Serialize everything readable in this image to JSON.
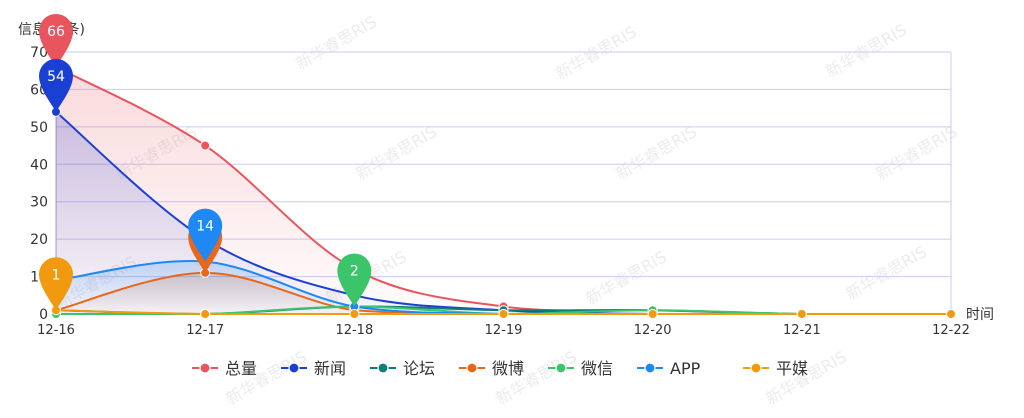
{
  "chart_data": {
    "type": "line",
    "ylabel": "信息量(条)",
    "xlabel": "时间",
    "categories": [
      "12-16",
      "12-17",
      "12-18",
      "12-19",
      "12-20",
      "12-21",
      "12-22"
    ],
    "ylim": [
      0,
      70
    ],
    "yticks": [
      0,
      10,
      20,
      30,
      40,
      50,
      60,
      70
    ],
    "grid": true,
    "legend_position": "bottom-center",
    "series": [
      {
        "name": "总量",
        "color": "#e8555e",
        "values": [
          66,
          45,
          12,
          2,
          1,
          0,
          0
        ],
        "area": true
      },
      {
        "name": "新闻",
        "color": "#1a3fd3",
        "values": [
          54,
          20,
          5,
          1,
          0,
          0,
          0
        ],
        "area": true
      },
      {
        "name": "论坛",
        "color": "#0e7c7b",
        "values": [
          1,
          0,
          2,
          1,
          1,
          0,
          0
        ],
        "area": false
      },
      {
        "name": "微博",
        "color": "#e8671b",
        "values": [
          1,
          11,
          1,
          0,
          0,
          0,
          0
        ],
        "area": true
      },
      {
        "name": "微信",
        "color": "#3cc46a",
        "values": [
          0,
          0,
          2,
          0,
          1,
          0,
          0
        ],
        "area": false
      },
      {
        "name": "APP",
        "color": "#1e88f5",
        "values": [
          9,
          14,
          2,
          0,
          0,
          0,
          0
        ],
        "area": true
      },
      {
        "name": "平媒",
        "color": "#f19a0f",
        "values": [
          1,
          0,
          0,
          0,
          0,
          0,
          0
        ],
        "area": false
      }
    ],
    "annotations": [
      {
        "series": "总量",
        "index": 0,
        "label": "66"
      },
      {
        "series": "新闻",
        "index": 0,
        "label": "54"
      },
      {
        "series": "微博",
        "index": 1,
        "label": ""
      },
      {
        "series": "APP",
        "index": 1,
        "label": "14"
      },
      {
        "series": "微信",
        "index": 2,
        "label": "2"
      },
      {
        "series": "平媒",
        "index": 0,
        "label": "1"
      }
    ]
  },
  "watermark": "新华睿思RIS"
}
